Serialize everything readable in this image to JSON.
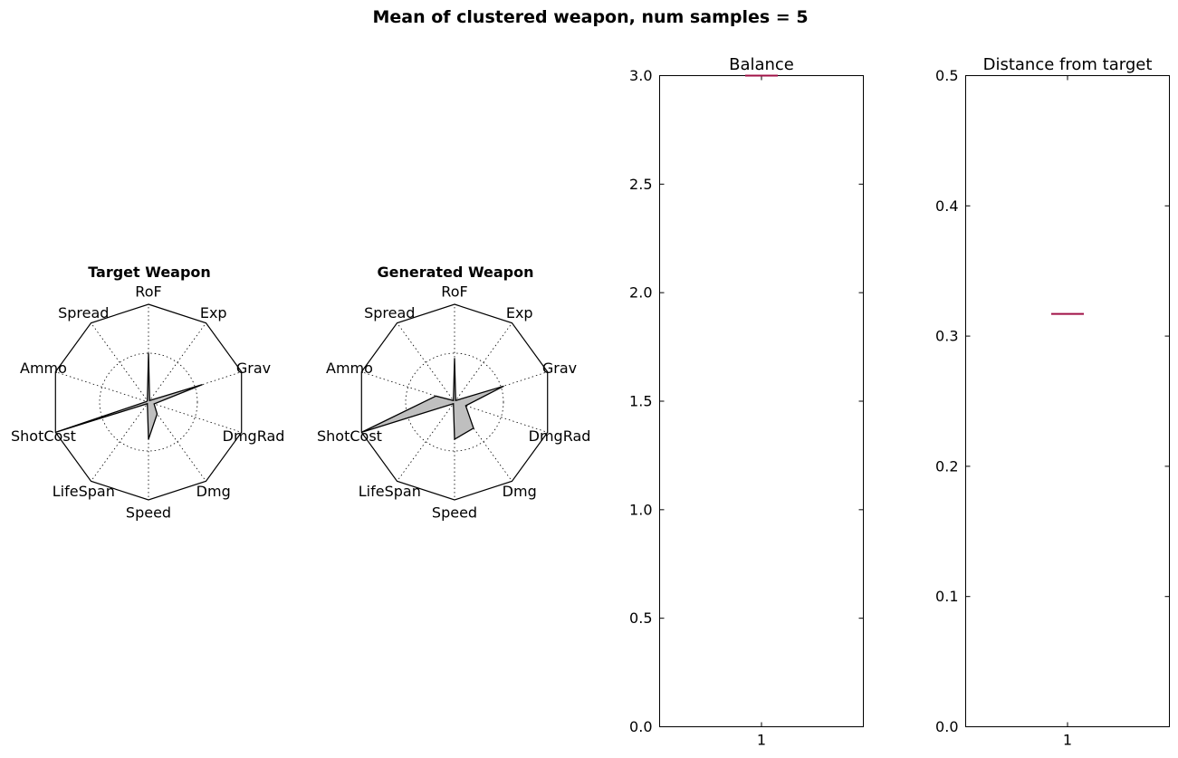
{
  "figure": {
    "suptitle": "Mean of clustered weapon, num samples = 5"
  },
  "chart_data": [
    {
      "type": "radar",
      "title": "Target Weapon",
      "axes": [
        "RoF",
        "Exp",
        "Grav",
        "DmgRad",
        "Dmg",
        "Speed",
        "LifeSpan",
        "ShotCost",
        "Ammo",
        "Spread"
      ],
      "values": [
        0.5,
        0.02,
        0.58,
        0.06,
        0.15,
        0.38,
        0.02,
        1.0,
        0.02,
        0.02
      ],
      "range": [
        0,
        1
      ],
      "grid_rings": [
        0.5
      ],
      "fill_color": "#bfbfbf"
    },
    {
      "type": "radar",
      "title": "Generated Weapon",
      "axes": [
        "RoF",
        "Exp",
        "Grav",
        "DmgRad",
        "Dmg",
        "Speed",
        "LifeSpan",
        "ShotCost",
        "Ammo",
        "Spread"
      ],
      "values": [
        0.45,
        0.02,
        0.53,
        0.12,
        0.33,
        0.38,
        0.02,
        1.0,
        0.2,
        0.02
      ],
      "range": [
        0,
        1
      ],
      "grid_rings": [
        0.5
      ],
      "fill_color": "#bfbfbf"
    },
    {
      "type": "box",
      "title": "Balance",
      "categories": [
        "1"
      ],
      "values": [
        3.0
      ],
      "ylim": [
        0,
        3.0
      ],
      "yticks": [
        "0.0",
        "0.5",
        "1.0",
        "1.5",
        "2.0",
        "2.5",
        "3.0"
      ],
      "median_color": "#a01046"
    },
    {
      "type": "box",
      "title": "Distance from target",
      "categories": [
        "1"
      ],
      "values": [
        0.317
      ],
      "ylim": [
        0,
        0.5
      ],
      "yticks": [
        "0.0",
        "0.1",
        "0.2",
        "0.3",
        "0.4",
        "0.5"
      ],
      "median_color": "#a01046"
    }
  ]
}
